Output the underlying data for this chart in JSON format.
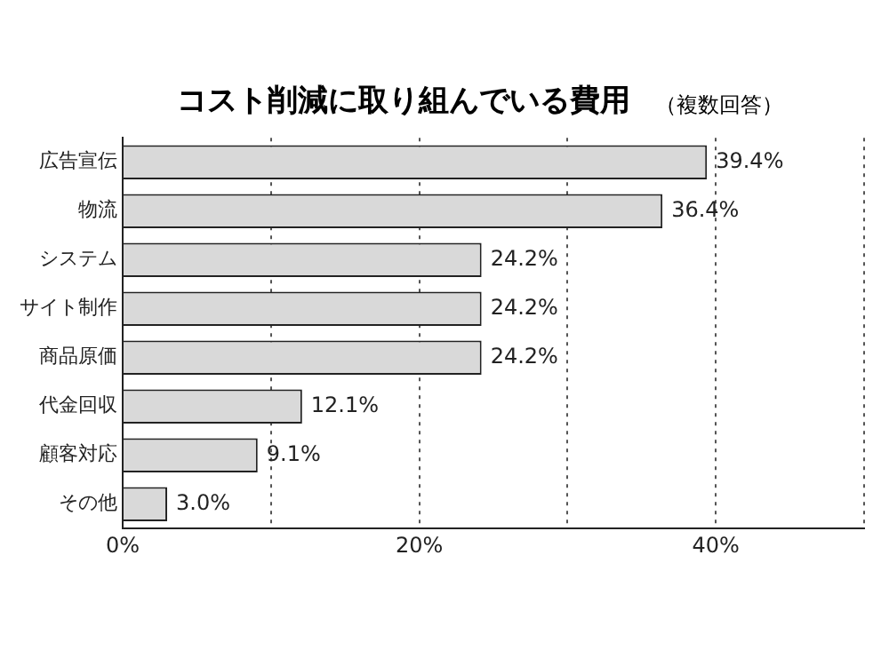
{
  "chart_data": {
    "type": "bar",
    "orientation": "horizontal",
    "title": "コスト削減に取り組んでいる費用",
    "subtitle": "（複数回答）",
    "categories": [
      "広告宣伝",
      "物流",
      "システム",
      "サイト制作",
      "商品原価",
      "代金回収",
      "顧客対応",
      "その他"
    ],
    "values": [
      39.4,
      36.4,
      24.2,
      24.2,
      24.2,
      12.1,
      9.1,
      3.0
    ],
    "value_labels": [
      "39.4%",
      "36.4%",
      "24.2%",
      "24.2%",
      "24.2%",
      "12.1%",
      "9.1%",
      "3.0%"
    ],
    "color": "#d9d9d9",
    "xlim": [
      0,
      50
    ],
    "xticks": [
      {
        "value": 0,
        "label": "0%"
      },
      {
        "value": 10,
        "label": null
      },
      {
        "value": 20,
        "label": "20%"
      },
      {
        "value": 30,
        "label": null
      },
      {
        "value": 40,
        "label": "40%"
      },
      {
        "value": 50,
        "label": null
      }
    ],
    "grid": "x",
    "legend": false
  }
}
